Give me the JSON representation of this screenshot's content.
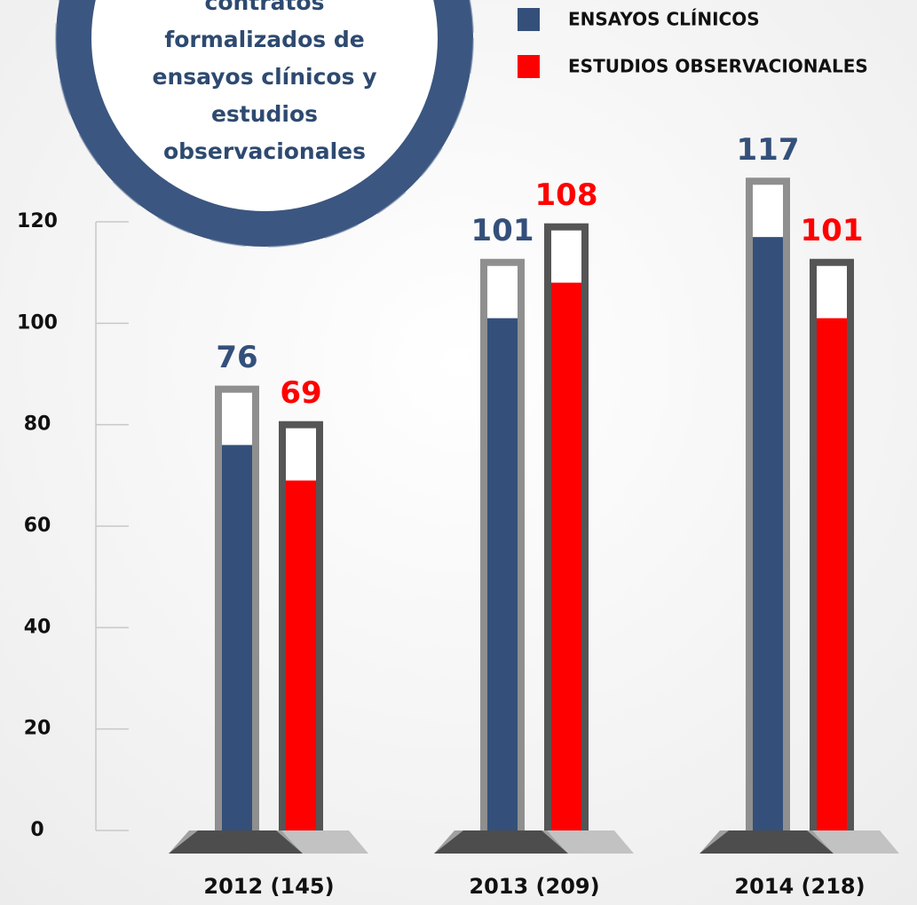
{
  "chart_data": {
    "type": "bar",
    "title": "contratos formalizados de ensayos clínicos y estudios observacionales",
    "categories": [
      "2012 (145)",
      "2013 (209)",
      "2014 (218)"
    ],
    "series": [
      {
        "name": "ENSAYOS CLÍNICOS",
        "color": "#34507a",
        "values": [
          76,
          101,
          117
        ]
      },
      {
        "name": "ESTUDIOS OBSERVACIONALES",
        "color": "#ff0000",
        "values": [
          69,
          108,
          101
        ]
      }
    ],
    "ylim": [
      0,
      120
    ],
    "yticks": [
      0,
      20,
      40,
      60,
      80,
      100,
      120
    ],
    "legend": "top-right"
  }
}
